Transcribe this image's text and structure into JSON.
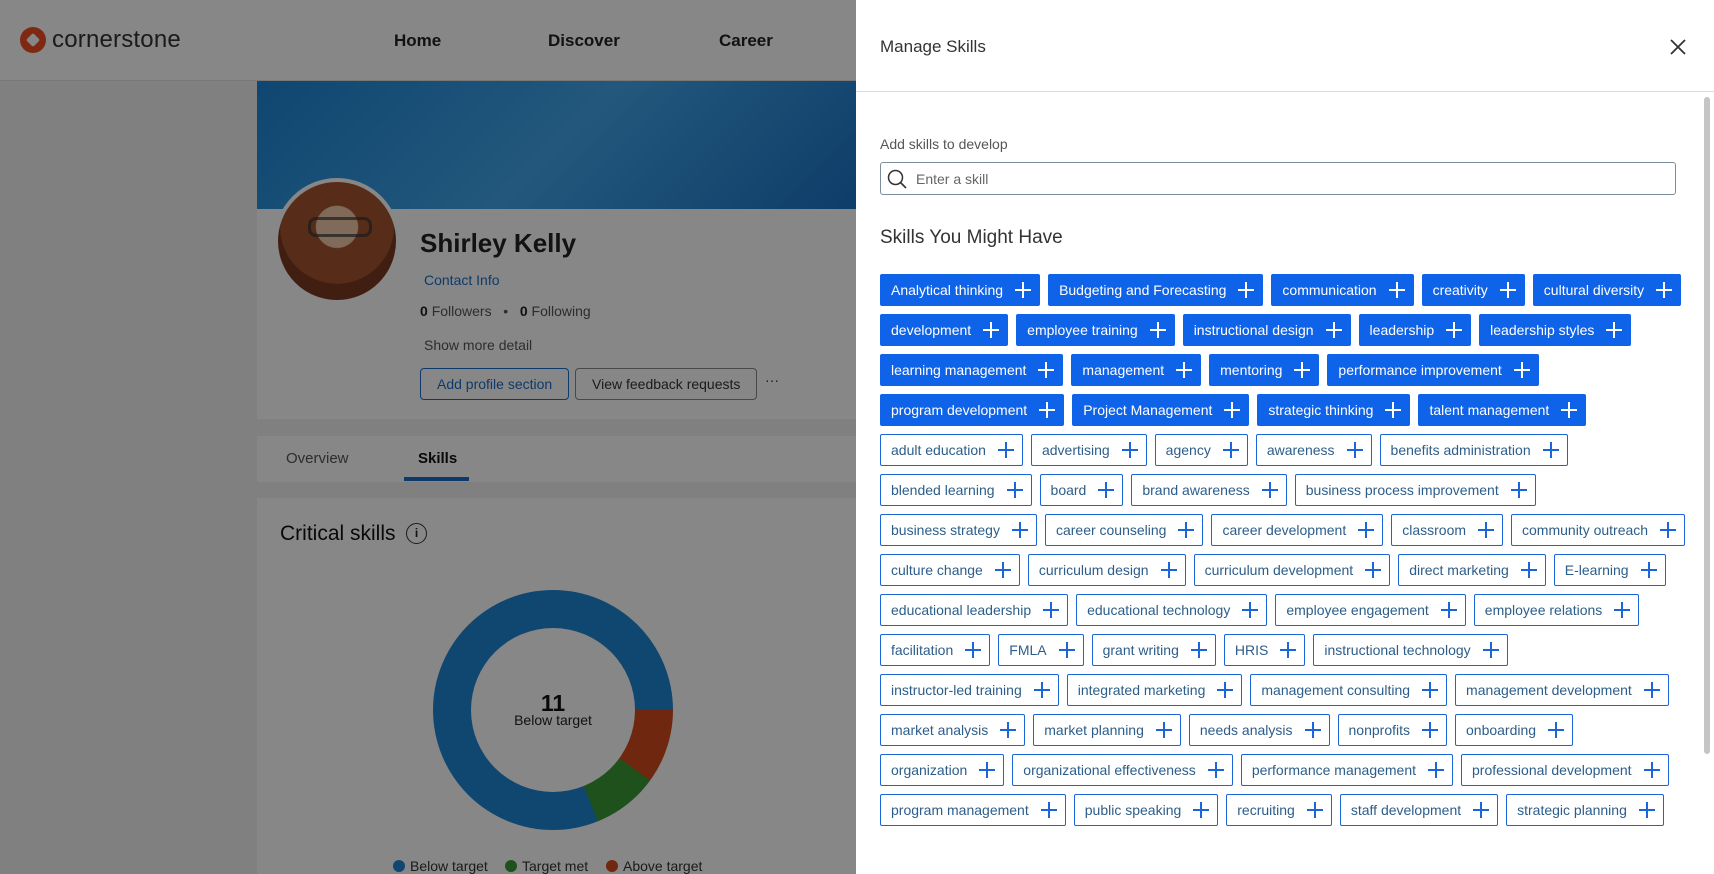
{
  "app": {
    "logo_text": "cornerstone",
    "nav": [
      "Home",
      "Discover",
      "Career"
    ]
  },
  "profile": {
    "name": "Shirley Kelly",
    "contact_link": "Contact Info",
    "followers_count": "0",
    "followers_label": "Followers",
    "following_count": "0",
    "following_label": "Following",
    "show_more": "Show more detail",
    "add_section_button": "Add profile section",
    "feedback_button": "View feedback requests",
    "more_menu": "···"
  },
  "tabs": {
    "overview": "Overview",
    "skills": "Skills"
  },
  "critical_skills": {
    "title": "Critical skills",
    "info_icon": "i",
    "count": "11",
    "count_label": "Below target",
    "legend": {
      "below": "Below target",
      "met": "Target met",
      "above": "Above target"
    },
    "colors": {
      "below": "#1f87d6",
      "met": "#3a9a36",
      "above": "#d24b1d"
    }
  },
  "panel": {
    "title": "Manage Skills",
    "add_label": "Add skills to develop",
    "search_placeholder": "Enter a skill",
    "section_title": "Skills You Might Have"
  },
  "skills": [
    {
      "label": "Analytical thinking",
      "selected": true
    },
    {
      "label": "Budgeting and Forecasting",
      "selected": true
    },
    {
      "label": "communication",
      "selected": true
    },
    {
      "label": "creativity",
      "selected": true
    },
    {
      "label": "cultural diversity",
      "selected": true
    },
    {
      "label": "development",
      "selected": true
    },
    {
      "label": "employee training",
      "selected": true
    },
    {
      "label": "instructional design",
      "selected": true
    },
    {
      "label": "leadership",
      "selected": true
    },
    {
      "label": "leadership styles",
      "selected": true
    },
    {
      "label": "learning management",
      "selected": true
    },
    {
      "label": "management",
      "selected": true
    },
    {
      "label": "mentoring",
      "selected": true
    },
    {
      "label": "performance improvement",
      "selected": true
    },
    {
      "label": "program development",
      "selected": true
    },
    {
      "label": "Project Management",
      "selected": true
    },
    {
      "label": "strategic thinking",
      "selected": true
    },
    {
      "label": "talent management",
      "selected": true
    },
    {
      "label": "adult education",
      "selected": false
    },
    {
      "label": "advertising",
      "selected": false
    },
    {
      "label": "agency",
      "selected": false
    },
    {
      "label": "awareness",
      "selected": false
    },
    {
      "label": "benefits administration",
      "selected": false
    },
    {
      "label": "blended learning",
      "selected": false
    },
    {
      "label": "board",
      "selected": false
    },
    {
      "label": "brand awareness",
      "selected": false
    },
    {
      "label": "business process improvement",
      "selected": false
    },
    {
      "label": "business strategy",
      "selected": false
    },
    {
      "label": "career counseling",
      "selected": false
    },
    {
      "label": "career development",
      "selected": false
    },
    {
      "label": "classroom",
      "selected": false
    },
    {
      "label": "community outreach",
      "selected": false
    },
    {
      "label": "culture change",
      "selected": false
    },
    {
      "label": "curriculum design",
      "selected": false
    },
    {
      "label": "curriculum development",
      "selected": false
    },
    {
      "label": "direct marketing",
      "selected": false
    },
    {
      "label": "E-learning",
      "selected": false
    },
    {
      "label": "educational leadership",
      "selected": false
    },
    {
      "label": "educational technology",
      "selected": false
    },
    {
      "label": "employee engagement",
      "selected": false
    },
    {
      "label": "employee relations",
      "selected": false
    },
    {
      "label": "facilitation",
      "selected": false
    },
    {
      "label": "FMLA",
      "selected": false
    },
    {
      "label": "grant writing",
      "selected": false
    },
    {
      "label": "HRIS",
      "selected": false
    },
    {
      "label": "instructional technology",
      "selected": false
    },
    {
      "label": "instructor-led training",
      "selected": false
    },
    {
      "label": "integrated marketing",
      "selected": false
    },
    {
      "label": "management consulting",
      "selected": false
    },
    {
      "label": "management development",
      "selected": false
    },
    {
      "label": "market analysis",
      "selected": false
    },
    {
      "label": "market planning",
      "selected": false
    },
    {
      "label": "needs analysis",
      "selected": false
    },
    {
      "label": "nonprofits",
      "selected": false
    },
    {
      "label": "onboarding",
      "selected": false
    },
    {
      "label": "organization",
      "selected": false
    },
    {
      "label": "organizational effectiveness",
      "selected": false
    },
    {
      "label": "performance management",
      "selected": false
    },
    {
      "label": "professional development",
      "selected": false
    },
    {
      "label": "program management",
      "selected": false
    },
    {
      "label": "public speaking",
      "selected": false
    },
    {
      "label": "recruiting",
      "selected": false
    },
    {
      "label": "staff development",
      "selected": false
    },
    {
      "label": "strategic planning",
      "selected": false
    }
  ],
  "colors": {
    "chip_selected_bg": "#0f63e8",
    "chip_border": "#1a66d9",
    "link": "#1a6fc9",
    "brand": "#f04e23"
  }
}
